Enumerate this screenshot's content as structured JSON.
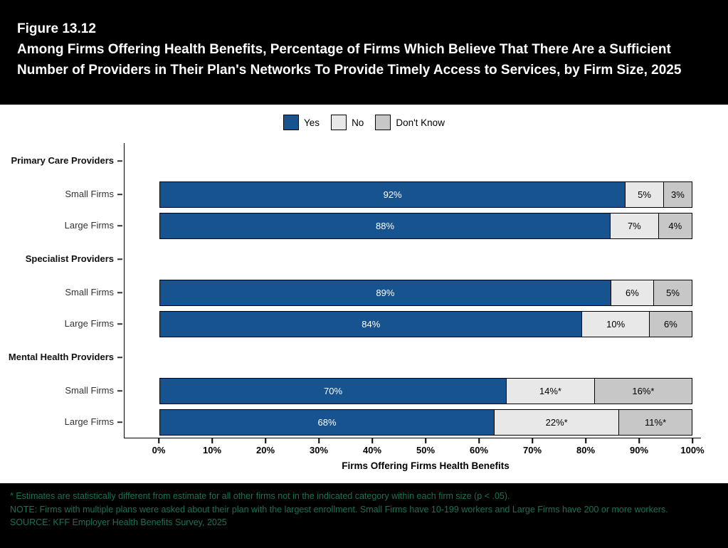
{
  "header": {
    "figure_label": "Figure 13.12",
    "title": "Among Firms Offering Health Benefits, Percentage of Firms Which Believe That There Are a Sufficient Number of Providers in Their Plan's Networks To Provide Timely Access to Services, by Firm Size, 2025"
  },
  "legend": {
    "items": [
      {
        "label": "Yes",
        "color": "#17538e"
      },
      {
        "label": "No",
        "color": "#e8e8e8"
      },
      {
        "label": "Don't Know",
        "color": "#c7c7c7"
      }
    ]
  },
  "chart_data": {
    "type": "bar",
    "orientation": "horizontal",
    "stacked": true,
    "title": "Among Firms Offering Health Benefits, Percentage of Firms Which Believe That There Are a Sufficient Number of Providers in Their Plan's Networks To Provide Timely Access to Services, by Firm Size, 2025",
    "series_names": [
      "Yes",
      "No",
      "Don't Know"
    ],
    "xlabel": "Firms Offering Firms Health Benefits",
    "xlim": [
      0,
      100
    ],
    "x_ticks": [
      "0%",
      "10%",
      "20%",
      "30%",
      "40%",
      "50%",
      "60%",
      "70%",
      "80%",
      "90%",
      "100%"
    ],
    "colors": {
      "yes": "#17538e",
      "no": "#e8e8e8",
      "dont_know": "#c7c7c7"
    },
    "groups": [
      {
        "name": "Primary Care Providers",
        "rows": [
          {
            "label": "Small Firms",
            "values": [
              92,
              5,
              3
            ],
            "labels": [
              "92%",
              "5%",
              "3%"
            ]
          },
          {
            "label": "Large Firms",
            "values": [
              88,
              7,
              4
            ],
            "labels": [
              "88%",
              "7%",
              "4%"
            ]
          }
        ]
      },
      {
        "name": "Specialist Providers",
        "rows": [
          {
            "label": "Small Firms",
            "values": [
              89,
              6,
              5
            ],
            "labels": [
              "89%",
              "6%",
              "5%"
            ]
          },
          {
            "label": "Large Firms",
            "values": [
              84,
              10,
              6
            ],
            "labels": [
              "84%",
              "10%",
              "6%"
            ]
          }
        ]
      },
      {
        "name": "Mental Health Providers",
        "rows": [
          {
            "label": "Small Firms",
            "values": [
              70,
              14,
              16
            ],
            "labels": [
              "70%",
              "14%*",
              "16%*"
            ]
          },
          {
            "label": "Large Firms",
            "values": [
              68,
              22,
              11
            ],
            "labels": [
              "68%",
              "22%*",
              "11%*"
            ]
          }
        ]
      }
    ]
  },
  "footer": {
    "lines": [
      "* Estimates are statistically different from estimate for all other firms not in the indicated category within each firm size (p < .05).",
      "NOTE: Firms with multiple plans were asked about their plan with the largest enrollment.  Small Firms have 10-199 workers and Large Firms have 200 or more workers.",
      "SOURCE: KFF Employer Health Benefits Survey, 2025"
    ]
  }
}
